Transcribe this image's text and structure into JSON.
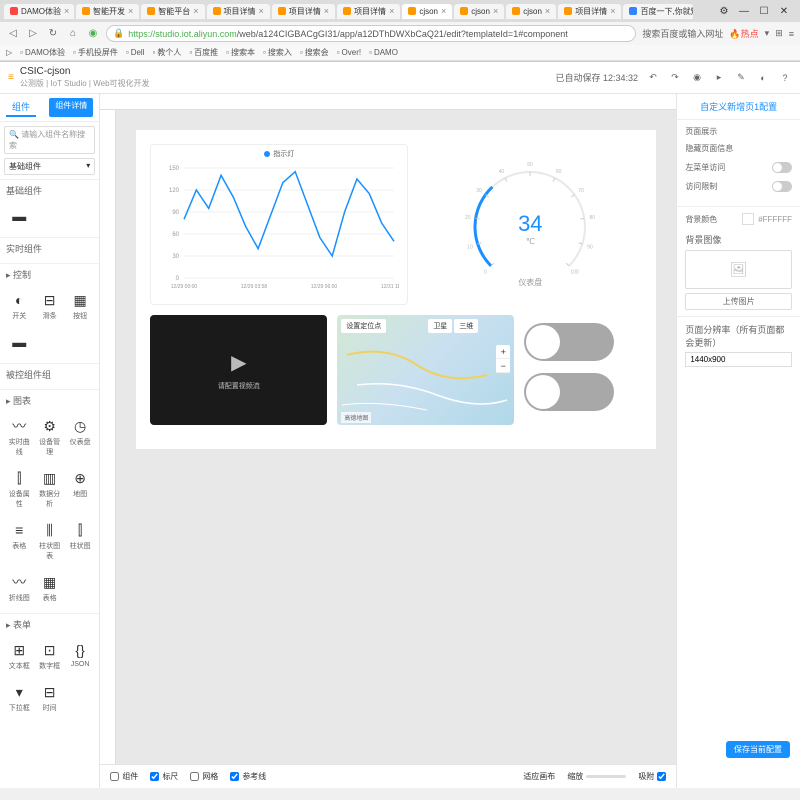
{
  "browser": {
    "tabs": [
      {
        "label": "DAMO体验",
        "icon_color": "#ff4444"
      },
      {
        "label": "智能开发",
        "icon_color": "#ff9800"
      },
      {
        "label": "智能平台",
        "icon_color": "#ff9800"
      },
      {
        "label": "项目详情",
        "icon_color": "#ff9800"
      },
      {
        "label": "项目详情",
        "icon_color": "#ff9800"
      },
      {
        "label": "项目详情",
        "icon_color": "#ff9800"
      },
      {
        "label": "cjson",
        "icon_color": "#ff9800",
        "active": true
      },
      {
        "label": "cjson",
        "icon_color": "#ff9800"
      },
      {
        "label": "cjson",
        "icon_color": "#ff9800"
      },
      {
        "label": "项目详情",
        "icon_color": "#ff9800"
      },
      {
        "label": "百度一下,你就知",
        "icon_color": "#3385ff"
      }
    ],
    "url_host": "https://studio.iot.aliyun.com",
    "url_path": "/web/a124CIGBACgGI31/app/a12DThDWXbCaQ21/edit?templateId=1#component",
    "addr_right_text": "搜索百度或输入网址",
    "hot_label": "热点",
    "bookmarks": [
      "DAMO体验",
      "手机投屏件",
      "Dell",
      "教个人",
      "百度推",
      "搜索本",
      "搜索入",
      "搜索会",
      "Over!",
      "DAMO"
    ]
  },
  "app": {
    "title": "CSIC-cjson",
    "subtitle": "公测版 | IoT Studio | Web可视化开发",
    "autosave_label": "已自动保存 12:34:32",
    "header_icons": [
      "↶",
      "↷",
      "◉",
      "▸",
      "✎",
      "◐",
      "?"
    ]
  },
  "left_panel": {
    "tabs": [
      "组件",
      "组件详情"
    ],
    "search_placeholder": "请输入组件名称搜索",
    "dropdown_value": "基础组件",
    "sections": [
      {
        "title": "基础组件",
        "items": [
          {
            "icon": "▬",
            "label": ""
          }
        ]
      },
      {
        "title": "实时组件",
        "items": []
      },
      {
        "title": "▸ 控制",
        "items": [
          {
            "icon": "◐",
            "label": "开关"
          },
          {
            "icon": "⊟",
            "label": "滑条"
          },
          {
            "icon": "▦",
            "label": "按钮"
          },
          {
            "icon": "▬",
            "label": ""
          }
        ]
      },
      {
        "title": "被控组件组",
        "items": []
      },
      {
        "title": "▸ 图表",
        "items": [
          {
            "icon": "〰",
            "label": "实时曲线"
          },
          {
            "icon": "⚙",
            "label": "设备管理"
          },
          {
            "icon": "◷",
            "label": "仪表盘"
          },
          {
            "icon": "⫿",
            "label": "设备属性"
          },
          {
            "icon": "▥",
            "label": "数据分析"
          },
          {
            "icon": "⊕",
            "label": "地图"
          },
          {
            "icon": "≡",
            "label": "表格"
          },
          {
            "icon": "⫼",
            "label": "柱状图表"
          },
          {
            "icon": "⫿",
            "label": "柱状图"
          },
          {
            "icon": "〰",
            "label": "折线图"
          },
          {
            "icon": "▦",
            "label": "表格"
          }
        ]
      },
      {
        "title": "▸ 表单",
        "items": [
          {
            "icon": "⊞",
            "label": "文本框"
          },
          {
            "icon": "⊡",
            "label": "数字框"
          },
          {
            "icon": "{}",
            "label": "JSON"
          },
          {
            "icon": "▾",
            "label": "下拉框"
          },
          {
            "icon": "⊟",
            "label": "时间"
          }
        ]
      }
    ]
  },
  "canvas": {
    "line_chart": {
      "type": "line",
      "legend": "指示灯",
      "x_labels": [
        "12/29 00:00",
        "12/29 03:58",
        "12/29 06:00",
        "12/31 11:01"
      ],
      "y_max": 150,
      "y_ticks": [
        0,
        30,
        60,
        90,
        120,
        150
      ],
      "series_color": "#1890ff",
      "data": [
        80,
        120,
        95,
        140,
        110,
        70,
        40,
        85,
        130,
        145,
        100,
        55,
        30,
        90,
        135,
        115,
        75,
        50
      ],
      "grid_color": "#f0f0f0"
    },
    "gauge": {
      "type": "gauge",
      "value": 34,
      "unit": "℃",
      "label": "仪表盘",
      "min": 0,
      "max": 100,
      "arc_color": "#1890ff",
      "track_color": "#e8e8e8"
    },
    "video": {
      "placeholder_text": "请配置视频流"
    },
    "map": {
      "controls": [
        "设置定位点",
        "卫星",
        "三维"
      ],
      "footer": "高德地图"
    },
    "toggles": [
      {
        "on": false
      },
      {
        "on": false
      }
    ]
  },
  "canvas_footer": {
    "left_items": [
      {
        "label": "组件",
        "checked": false
      },
      {
        "label": "标尺",
        "checked": true
      },
      {
        "label": "网格",
        "checked": false
      },
      {
        "label": "参考线",
        "checked": true
      }
    ],
    "right_items": [
      {
        "label": "适应画布",
        "type": "text"
      },
      {
        "label": "缩放",
        "type": "slider"
      },
      {
        "label": "吸附",
        "checked": true
      }
    ]
  },
  "right_panel": {
    "header": "自定义新增页1配置",
    "section1_title": "页面展示",
    "props": [
      {
        "label": "隐藏页面信息",
        "type": "none"
      },
      {
        "label": "左菜单访问",
        "type": "toggle",
        "on": false
      },
      {
        "label": "访问限制",
        "type": "toggle",
        "on": false
      }
    ],
    "bg_color_label": "背景颜色",
    "bg_color_value": "#FFFFFF",
    "bg_image_label": "背景图像",
    "upload_btn": "上传图片",
    "resolution_label": "页面分辨率（所有页面都会更新）",
    "resolution_value": "1440x900",
    "save_prompt": "保存当前配置"
  }
}
